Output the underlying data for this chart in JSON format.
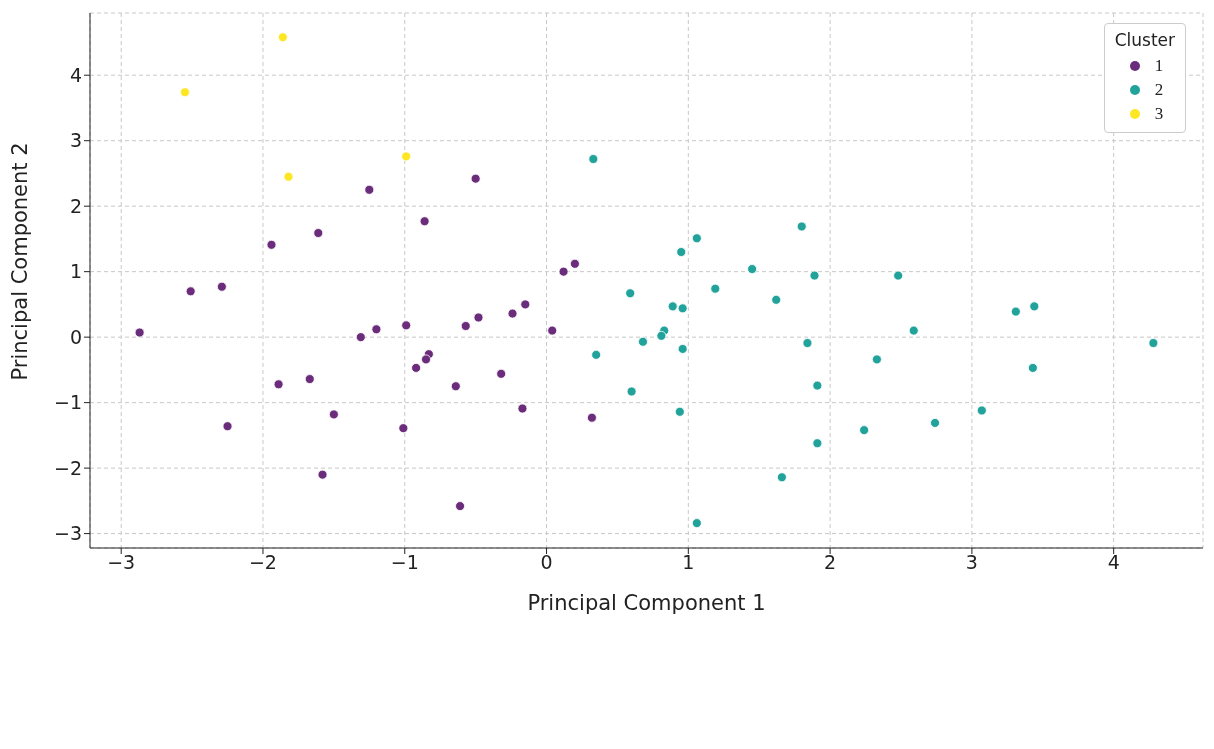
{
  "chart_data": {
    "type": "scatter",
    "xlabel": "Principal Component 1",
    "ylabel": "Principal Component 2",
    "legend_title": "Cluster",
    "legend": "top right",
    "grid": true,
    "marker": "circle",
    "xlim": [
      -3.22,
      4.63
    ],
    "ylim": [
      -3.22,
      4.95
    ],
    "xticks": [
      -3,
      -2,
      -1,
      0,
      1,
      2,
      3,
      4
    ],
    "yticks": [
      -3,
      -2,
      -1,
      0,
      1,
      2,
      3,
      4
    ],
    "series": [
      {
        "name": "1",
        "color": "#6b2d7b",
        "x": [
          -2.87,
          -2.51,
          -2.29,
          -1.94,
          -1.61,
          -1.25,
          -0.86,
          -0.5,
          -1.89,
          -1.67,
          -2.25,
          -1.5,
          -1.58,
          -1.31,
          -1.2,
          -0.99,
          -1.01,
          -0.92,
          -0.83,
          -0.85,
          -0.64,
          -0.57,
          -0.48,
          -0.61,
          -0.32,
          -0.24,
          -0.15,
          -0.17,
          0.04,
          0.12,
          0.2,
          0.32
        ],
        "values": [
          0.07,
          0.7,
          0.77,
          1.41,
          1.59,
          2.25,
          1.77,
          2.42,
          -0.72,
          -0.64,
          -1.36,
          -1.18,
          -2.1,
          0,
          0.12,
          0.18,
          -1.39,
          -0.47,
          -0.26,
          -0.34,
          -0.75,
          0.17,
          0.3,
          -2.58,
          -0.56,
          0.36,
          0.5,
          -1.09,
          0.1,
          1,
          1.12,
          -1.23
        ]
      },
      {
        "name": "2",
        "color": "#21a39c",
        "x": [
          0.33,
          0.59,
          0.35,
          0.6,
          0.68,
          0.83,
          0.81,
          0.89,
          0.96,
          0.95,
          1.06,
          0.96,
          0.94,
          1.06,
          1.19,
          1.45,
          1.62,
          1.66,
          1.8,
          1.89,
          1.84,
          1.91,
          1.91,
          2.24,
          2.33,
          2.48,
          2.59,
          2.74,
          3.07,
          3.31,
          3.44,
          3.43,
          4.28
        ],
        "values": [
          2.72,
          0.67,
          -0.27,
          -0.83,
          -0.07,
          0.1,
          0.02,
          0.47,
          0.44,
          1.3,
          1.51,
          -0.18,
          -1.14,
          -2.84,
          0.74,
          1.04,
          0.57,
          -2.14,
          1.69,
          0.94,
          -0.09,
          -0.74,
          -1.62,
          -1.42,
          -0.34,
          0.94,
          0.1,
          -1.31,
          -1.12,
          0.39,
          0.47,
          -0.47,
          -0.09
        ]
      },
      {
        "name": "3",
        "color": "#fde725",
        "x": [
          -2.55,
          -1.86,
          -1.82,
          -0.99
        ],
        "values": [
          3.74,
          4.58,
          2.45,
          2.76
        ]
      }
    ]
  }
}
